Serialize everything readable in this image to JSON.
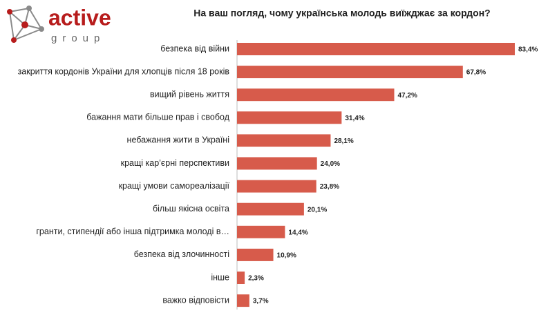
{
  "logo": {
    "name": "active",
    "tagline": "group"
  },
  "chart_data": {
    "type": "hbar",
    "title": "На ваш погляд, чому українська молодь виїжджає за кордон?",
    "categories": [
      "безпека від війни",
      "закриття кордонів України для хлопців після 18 років",
      "вищий рівень життя",
      "бажання мати більше прав і свобод",
      "небажання жити в Україні",
      "кращі кар’єрні перспективи",
      "кращі умови самореалізації",
      "більш якісна освіта",
      "гранти, стипендії або інша підтримка молоді в…",
      "безпека від злочинності",
      "інше",
      "важко відповісти"
    ],
    "values": [
      83.4,
      67.8,
      47.2,
      31.4,
      28.1,
      24.0,
      23.8,
      20.1,
      14.4,
      10.9,
      2.3,
      3.7
    ],
    "value_labels": [
      "83,4%",
      "67,8%",
      "47,2%",
      "31,4%",
      "28,1%",
      "24,0%",
      "23,8%",
      "20,1%",
      "14,4%",
      "10,9%",
      "2,3%",
      "3,7%"
    ],
    "color": "#d75b4b"
  }
}
